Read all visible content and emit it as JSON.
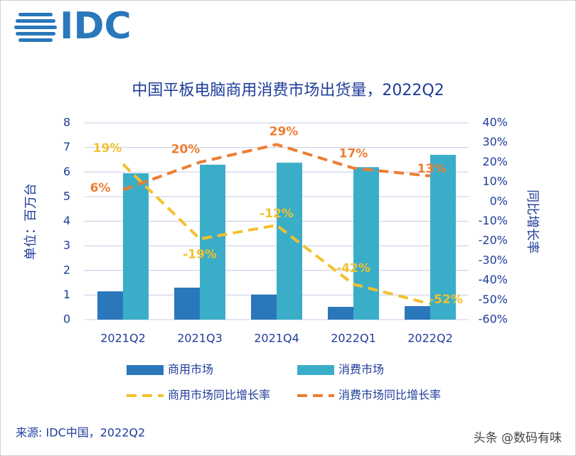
{
  "logo": "IDC",
  "source": "来源: IDC中国，2022Q2",
  "watermark": "头条 @数码有味",
  "chart_data": {
    "type": "bar-line",
    "title": "中国平板电脑商用消费市场出货量，2022Q2",
    "y_label": "单位：百万台",
    "y2_label": "同比增长率",
    "categories": [
      "2021Q2",
      "2021Q3",
      "2021Q4",
      "2022Q1",
      "2022Q2"
    ],
    "ylim": [
      0,
      8
    ],
    "yticks": [
      0,
      1,
      2,
      3,
      4,
      5,
      6,
      7,
      8
    ],
    "y2lim": [
      -60,
      40
    ],
    "y2ticks": [
      {
        "value": -60,
        "label": "-60%"
      },
      {
        "value": -50,
        "label": "-50%"
      },
      {
        "value": -40,
        "label": "-40%"
      },
      {
        "value": -30,
        "label": "-30%"
      },
      {
        "value": -20,
        "label": "-20%"
      },
      {
        "value": -10,
        "label": "-10%"
      },
      {
        "value": 0,
        "label": "0%"
      },
      {
        "value": 10,
        "label": "10%"
      },
      {
        "value": 20,
        "label": "20%"
      },
      {
        "value": 30,
        "label": "30%"
      },
      {
        "value": 40,
        "label": "40%"
      }
    ],
    "grid": true,
    "series": [
      {
        "name": "商用市场",
        "kind": "bar",
        "color": "#2a77bb",
        "values": [
          1.15,
          1.3,
          1.02,
          0.52,
          0.55
        ]
      },
      {
        "name": "消费市场",
        "kind": "bar",
        "color": "#3aaec8",
        "values": [
          5.95,
          6.3,
          6.38,
          6.2,
          6.7
        ]
      },
      {
        "name": "商用市场同比增长率",
        "kind": "line",
        "axis": "y2",
        "color": "#f2c12e",
        "values": [
          19,
          -19,
          -12,
          -42,
          -52
        ],
        "value_labels": [
          "19%",
          "-19%",
          "-12%",
          "-42%",
          "-52%"
        ]
      },
      {
        "name": "消费市场同比增长率",
        "kind": "line",
        "axis": "y2",
        "color": "#ed7d31",
        "values": [
          6,
          20,
          29,
          17,
          13
        ],
        "value_labels": [
          "6%",
          "20%",
          "29%",
          "17%",
          "13%"
        ]
      }
    ]
  }
}
